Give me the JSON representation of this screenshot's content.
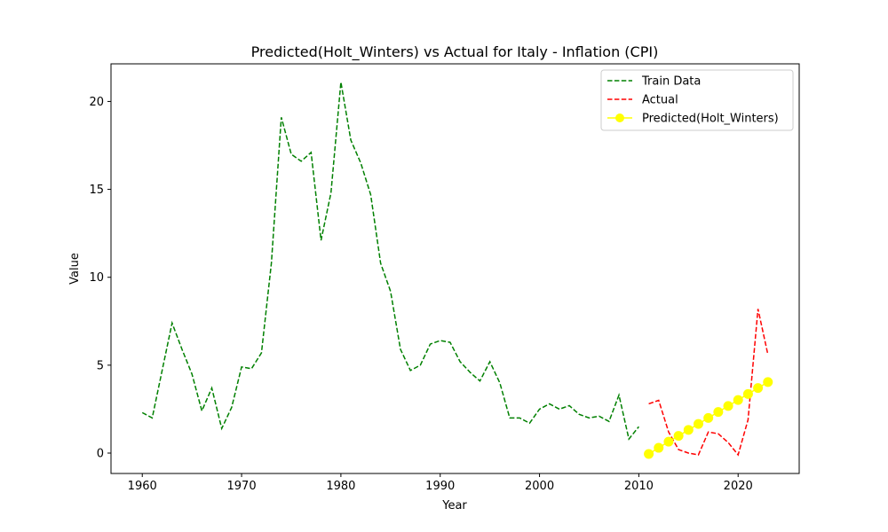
{
  "chart_data": {
    "type": "line",
    "title": "Predicted(Holt_Winters) vs Actual for Italy - Inflation (CPI)",
    "xlabel": "Year",
    "ylabel": "Value",
    "xlim": [
      1956.85,
      2026.15
    ],
    "ylim": [
      -1.16,
      22.14
    ],
    "xticks": [
      1960,
      1970,
      1980,
      1990,
      2000,
      2010,
      2020
    ],
    "yticks": [
      0,
      5,
      10,
      15,
      20
    ],
    "legend_position": "top-right",
    "series": [
      {
        "name": "Train Data",
        "color": "#008000",
        "style": "dashed",
        "x": [
          1960,
          1961,
          1962,
          1963,
          1964,
          1965,
          1966,
          1967,
          1968,
          1969,
          1970,
          1971,
          1972,
          1973,
          1974,
          1975,
          1976,
          1977,
          1978,
          1979,
          1980,
          1981,
          1982,
          1983,
          1984,
          1985,
          1986,
          1987,
          1988,
          1989,
          1990,
          1991,
          1992,
          1993,
          1994,
          1995,
          1996,
          1997,
          1998,
          1999,
          2000,
          2001,
          2002,
          2003,
          2004,
          2005,
          2006,
          2007,
          2008,
          2009,
          2010
        ],
        "values": [
          2.3,
          2.0,
          4.7,
          7.4,
          5.9,
          4.5,
          2.4,
          3.7,
          1.4,
          2.6,
          4.9,
          4.8,
          5.7,
          10.8,
          19.1,
          17.0,
          16.6,
          17.1,
          12.1,
          14.8,
          21.1,
          17.8,
          16.5,
          14.7,
          10.8,
          9.2,
          5.9,
          4.7,
          5.0,
          6.2,
          6.4,
          6.3,
          5.2,
          4.6,
          4.1,
          5.2,
          4.0,
          2.0,
          2.0,
          1.7,
          2.5,
          2.8,
          2.5,
          2.7,
          2.2,
          2.0,
          2.1,
          1.8,
          3.3,
          0.8,
          1.5
        ]
      },
      {
        "name": "Actual",
        "color": "#ff0000",
        "style": "dashed",
        "x": [
          2011,
          2012,
          2013,
          2014,
          2015,
          2016,
          2017,
          2018,
          2019,
          2020,
          2021,
          2022,
          2023
        ],
        "values": [
          2.8,
          3.0,
          1.2,
          0.2,
          0.0,
          -0.1,
          1.2,
          1.1,
          0.6,
          -0.1,
          1.9,
          8.2,
          5.6
        ]
      },
      {
        "name": "Predicted(Holt_Winters)",
        "color": "#ffff00",
        "style": "solid-marker",
        "x": [
          2011,
          2012,
          2013,
          2014,
          2015,
          2016,
          2017,
          2018,
          2019,
          2020,
          2021,
          2022,
          2023
        ],
        "values": [
          -0.05,
          0.3,
          0.65,
          0.98,
          1.32,
          1.66,
          2.0,
          2.34,
          2.68,
          3.02,
          3.36,
          3.7,
          4.04
        ]
      }
    ]
  }
}
